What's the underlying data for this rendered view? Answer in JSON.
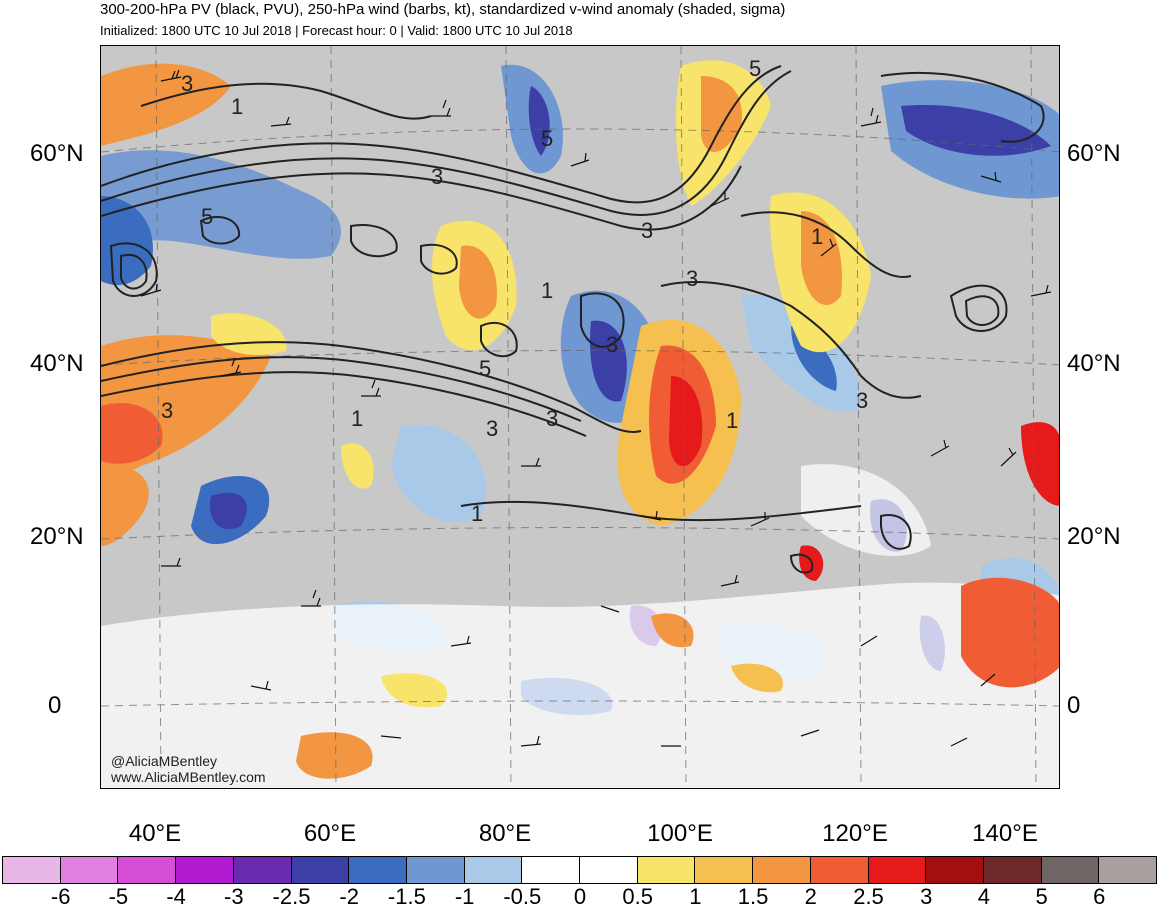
{
  "title": "300-200-hPa PV (black, PVU), 250-hPa wind (barbs, kt), standardized v-wind anomaly (shaded, sigma)",
  "subtitle": "Initialized: 1800 UTC 10 Jul 2018 | Forecast hour: 0 | Valid: 1800 UTC 10 Jul 2018",
  "credit": {
    "handle": "@AliciaMBentley",
    "website": "www.AliciaMBentley.com"
  },
  "lat_labels": [
    "60°N",
    "40°N",
    "20°N",
    "0"
  ],
  "lon_labels": [
    "40°E",
    "60°E",
    "80°E",
    "100°E",
    "120°E",
    "140°E"
  ],
  "contour_labels": [
    "3",
    "1",
    "5",
    "3",
    "5",
    "5",
    "3",
    "1",
    "1",
    "5",
    "3",
    "1",
    "3",
    "3",
    "3",
    "3",
    "1",
    "1",
    "3"
  ],
  "colorbar": {
    "labels": [
      "-6",
      "-5",
      "-4",
      "-3",
      "-2.5",
      "-2",
      "-1.5",
      "-1",
      "-0.5",
      "0",
      "0.5",
      "1",
      "1.5",
      "2",
      "2.5",
      "3",
      "4",
      "5",
      "6"
    ],
    "colors": [
      "#e9b7e6",
      "#e080e0",
      "#d64ed8",
      "#b01ad0",
      "#6a2bb0",
      "#3b3fa6",
      "#3a6cc0",
      "#6f97d2",
      "#a8c9e8",
      "#ffffff",
      "#ffffff",
      "#f9e46b",
      "#f5c050",
      "#f29642",
      "#f05d35",
      "#e61a1a",
      "#a30f0f",
      "#6e2a2a",
      "#6f6565",
      "#a9a0a0"
    ]
  },
  "colors": {
    "land_gray": "#c8c8c8",
    "pv_contour": "#222222",
    "barb": "#111111"
  }
}
